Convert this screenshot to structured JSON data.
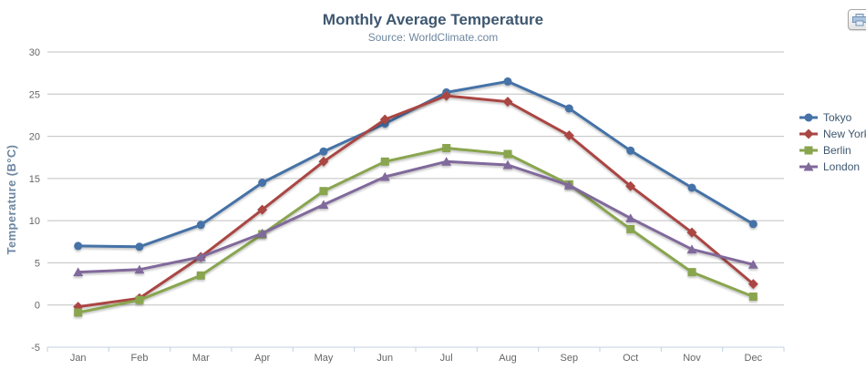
{
  "toolbar": {
    "print_icon": "printer"
  },
  "colors": {
    "title": "#3E576F",
    "subtitle": "#6D869F",
    "axis_title": "#6D869F",
    "tick_label": "#666666",
    "grid": "#C0C0C0",
    "axis_line": "#C0D0E0",
    "legend_text": "#3E576F"
  },
  "chart_data": {
    "type": "line",
    "title": "Monthly Average Temperature",
    "subtitle": "Source: WorldClimate.com",
    "xlabel": "",
    "ylabel": "Temperature (B°C)",
    "categories": [
      "Jan",
      "Feb",
      "Mar",
      "Apr",
      "May",
      "Jun",
      "Jul",
      "Aug",
      "Sep",
      "Oct",
      "Nov",
      "Dec"
    ],
    "ylim": [
      -5,
      30
    ],
    "yticks": [
      -5,
      0,
      5,
      10,
      15,
      20,
      25,
      30
    ],
    "grid": true,
    "legend_position": "right",
    "series": [
      {
        "name": "Tokyo",
        "color": "#4572A7",
        "marker": "circle",
        "values": [
          7.0,
          6.9,
          9.5,
          14.5,
          18.2,
          21.5,
          25.2,
          26.5,
          23.3,
          18.3,
          13.9,
          9.6
        ]
      },
      {
        "name": "New York",
        "color": "#AA4643",
        "marker": "diamond",
        "values": [
          -0.2,
          0.8,
          5.7,
          11.3,
          17.0,
          22.0,
          24.8,
          24.1,
          20.1,
          14.1,
          8.6,
          2.5
        ]
      },
      {
        "name": "Berlin",
        "color": "#89A54E",
        "marker": "square",
        "values": [
          -0.9,
          0.6,
          3.5,
          8.4,
          13.5,
          17.0,
          18.6,
          17.9,
          14.3,
          9.0,
          3.9,
          1.0
        ]
      },
      {
        "name": "London",
        "color": "#80699B",
        "marker": "triangle",
        "values": [
          3.9,
          4.2,
          5.7,
          8.5,
          11.9,
          15.2,
          17.0,
          16.6,
          14.2,
          10.3,
          6.6,
          4.8
        ]
      }
    ]
  }
}
